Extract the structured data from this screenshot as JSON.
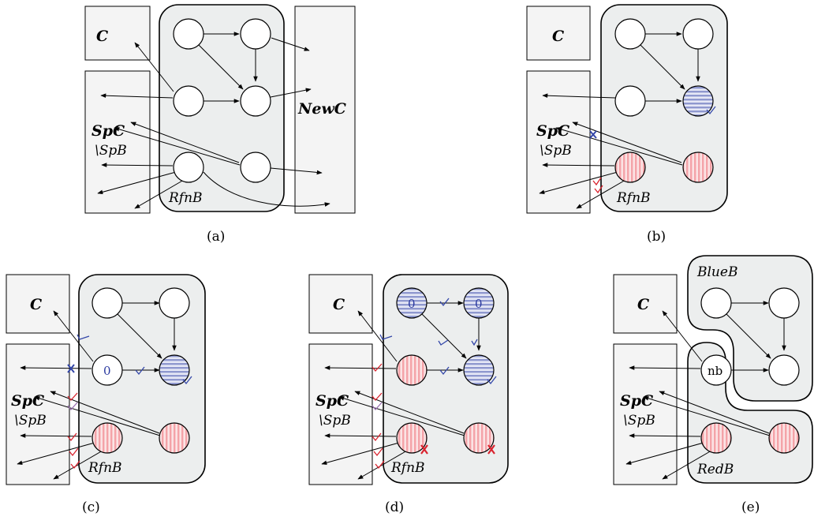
{
  "panels": [
    {
      "id": "a",
      "caption": "(a)",
      "left_box": "C",
      "right_box": "NewC",
      "spc_label": "SpC",
      "spb_label": "\\SpB",
      "block_label": "RfnB"
    },
    {
      "id": "b",
      "caption": "(b)",
      "left_box": "C",
      "spc_label": "SpC",
      "spb_label": "\\SpB",
      "block_label": "RfnB"
    },
    {
      "id": "c",
      "caption": "(c)",
      "left_box": "C",
      "spc_label": "SpC",
      "spb_label": "\\SpB",
      "block_label": "RfnB",
      "node_mark": "0"
    },
    {
      "id": "d",
      "caption": "(d)",
      "left_box": "C",
      "spc_label": "SpC",
      "spb_label": "\\SpB",
      "block_label": "RfnB",
      "node_mark_1": "0",
      "node_mark_2": "0"
    },
    {
      "id": "e",
      "caption": "(e)",
      "left_box": "C",
      "spc_label": "SpC",
      "spb_label": "\\SpB",
      "blue_label": "BlueB",
      "red_label": "RedB",
      "node_mark": "nb"
    }
  ],
  "colors": {
    "red_stripe": "#f4a3a8",
    "blue_stripe": "#8f98cf",
    "block_fill": "#eceeee",
    "box_fill": "#f4f4f4",
    "tick_blue": "#3346a8",
    "tick_red": "#d9232e"
  }
}
